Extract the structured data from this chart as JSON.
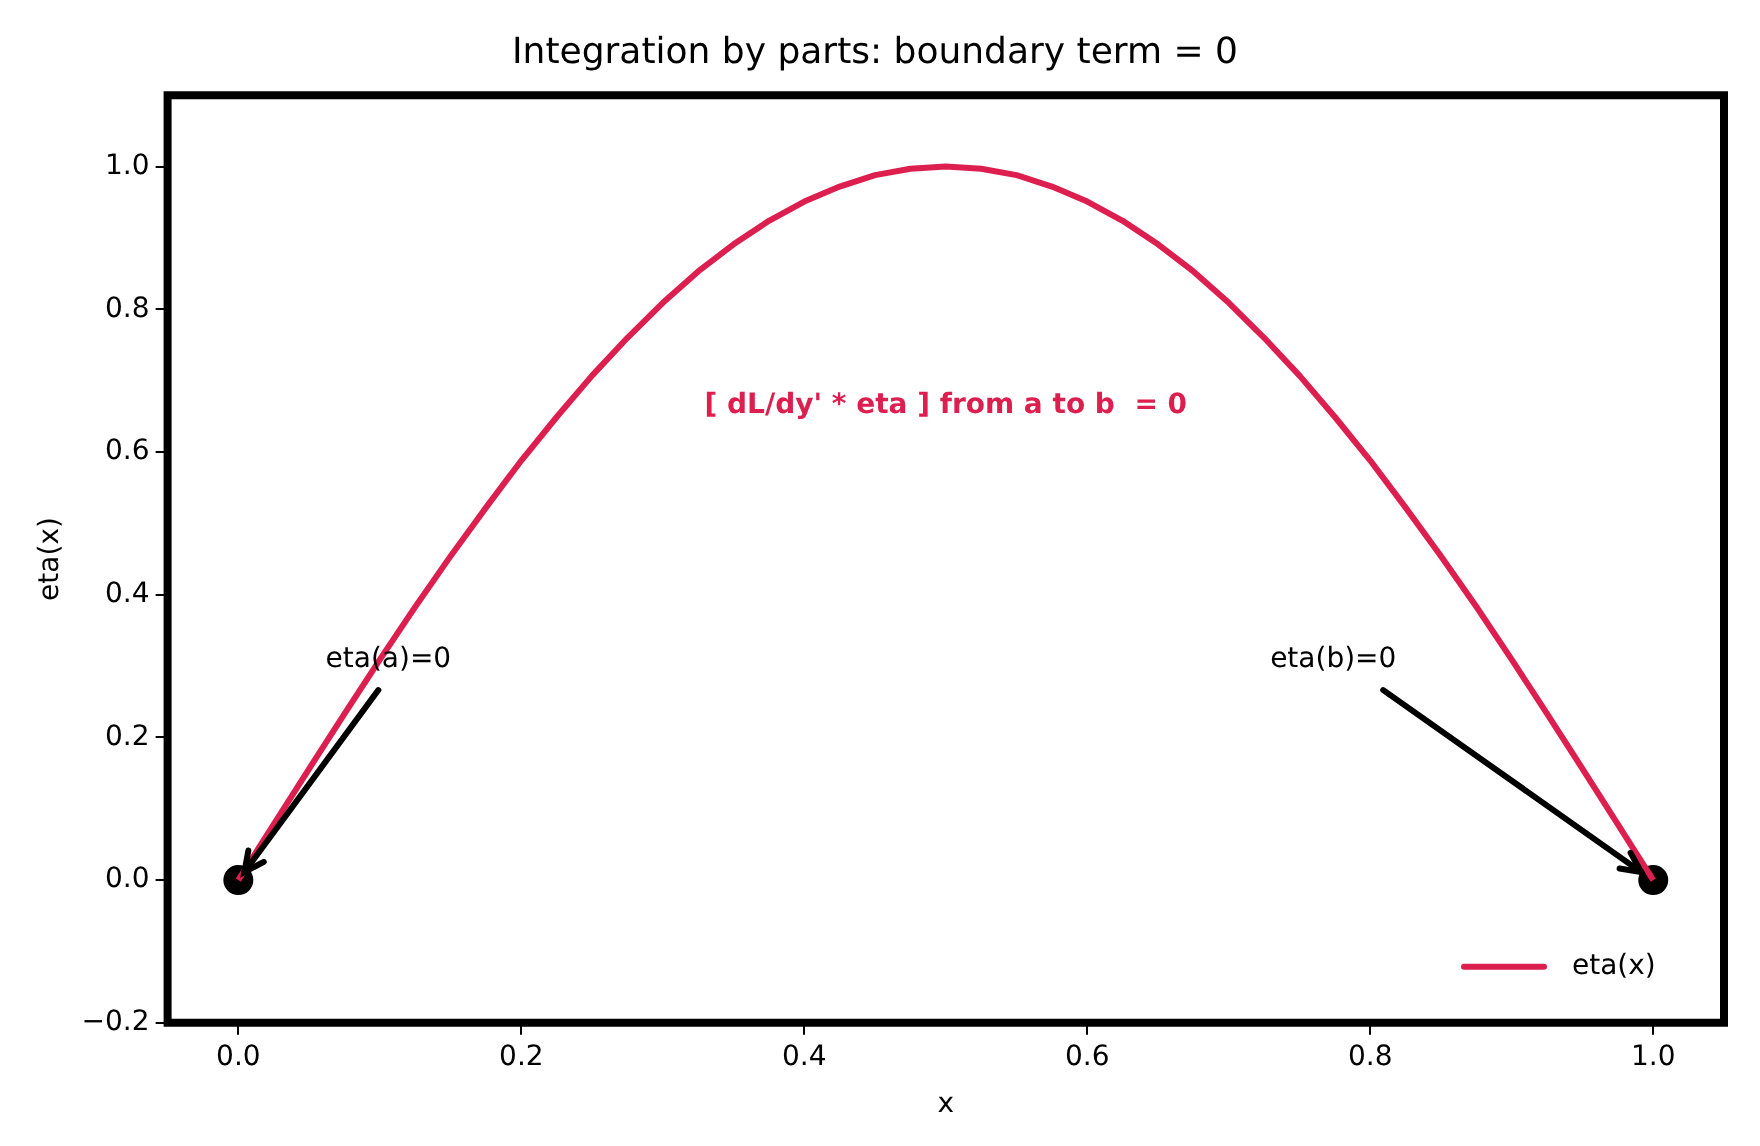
{
  "chart_data": {
    "type": "line",
    "title": "Integration by parts: boundary term = 0",
    "xlabel": "x",
    "ylabel": "eta(x)",
    "series": [
      {
        "name": "eta(x)",
        "color": "#dc1f4e",
        "x": [
          0,
          0.025,
          0.05,
          0.075,
          0.1,
          0.125,
          0.15,
          0.175,
          0.2,
          0.225,
          0.25,
          0.275,
          0.3,
          0.325,
          0.35,
          0.375,
          0.4,
          0.425,
          0.45,
          0.475,
          0.5,
          0.525,
          0.55,
          0.575,
          0.6,
          0.625,
          0.65,
          0.675,
          0.7,
          0.725,
          0.75,
          0.775,
          0.8,
          0.825,
          0.85,
          0.875,
          0.9,
          0.925,
          0.95,
          0.975,
          1
        ],
        "values": [
          0,
          0.078,
          0.156,
          0.233,
          0.309,
          0.383,
          0.454,
          0.522,
          0.588,
          0.649,
          0.707,
          0.76,
          0.809,
          0.853,
          0.891,
          0.924,
          0.951,
          0.972,
          0.988,
          0.997,
          1,
          0.997,
          0.988,
          0.972,
          0.951,
          0.924,
          0.891,
          0.853,
          0.809,
          0.76,
          0.707,
          0.649,
          0.588,
          0.522,
          0.454,
          0.383,
          0.309,
          0.233,
          0.156,
          0.078,
          0
        ]
      },
      {
        "type": "scatter",
        "color": "#000000",
        "marker": "circle",
        "x": [
          0,
          1
        ],
        "values": [
          0,
          0
        ]
      }
    ],
    "annotations": [
      {
        "text": "eta(a)=0",
        "x": 0,
        "y": 0
      },
      {
        "text": "eta(b)=0",
        "x": 1,
        "y": 0
      },
      "[ dL/dy' * eta ] from a to b  = 0"
    ],
    "xlim": [
      -0.05,
      1.05
    ],
    "ylim": [
      -0.2,
      1.1
    ],
    "xticks": [
      {
        "value": 0,
        "label": "0.0"
      },
      0.2,
      0.4,
      0.6,
      0.8,
      {
        "value": 1,
        "label": "1.0"
      }
    ],
    "yticks": [
      {
        "value": -0.2,
        "label": "−0.2"
      },
      {
        "value": 0,
        "label": "0.0"
      },
      0.2,
      0.4,
      0.6,
      0.8,
      {
        "value": 1,
        "label": "1.0"
      }
    ],
    "grid": false,
    "legend": "bottom right",
    "marker": "none",
    "line_style": "solid"
  }
}
